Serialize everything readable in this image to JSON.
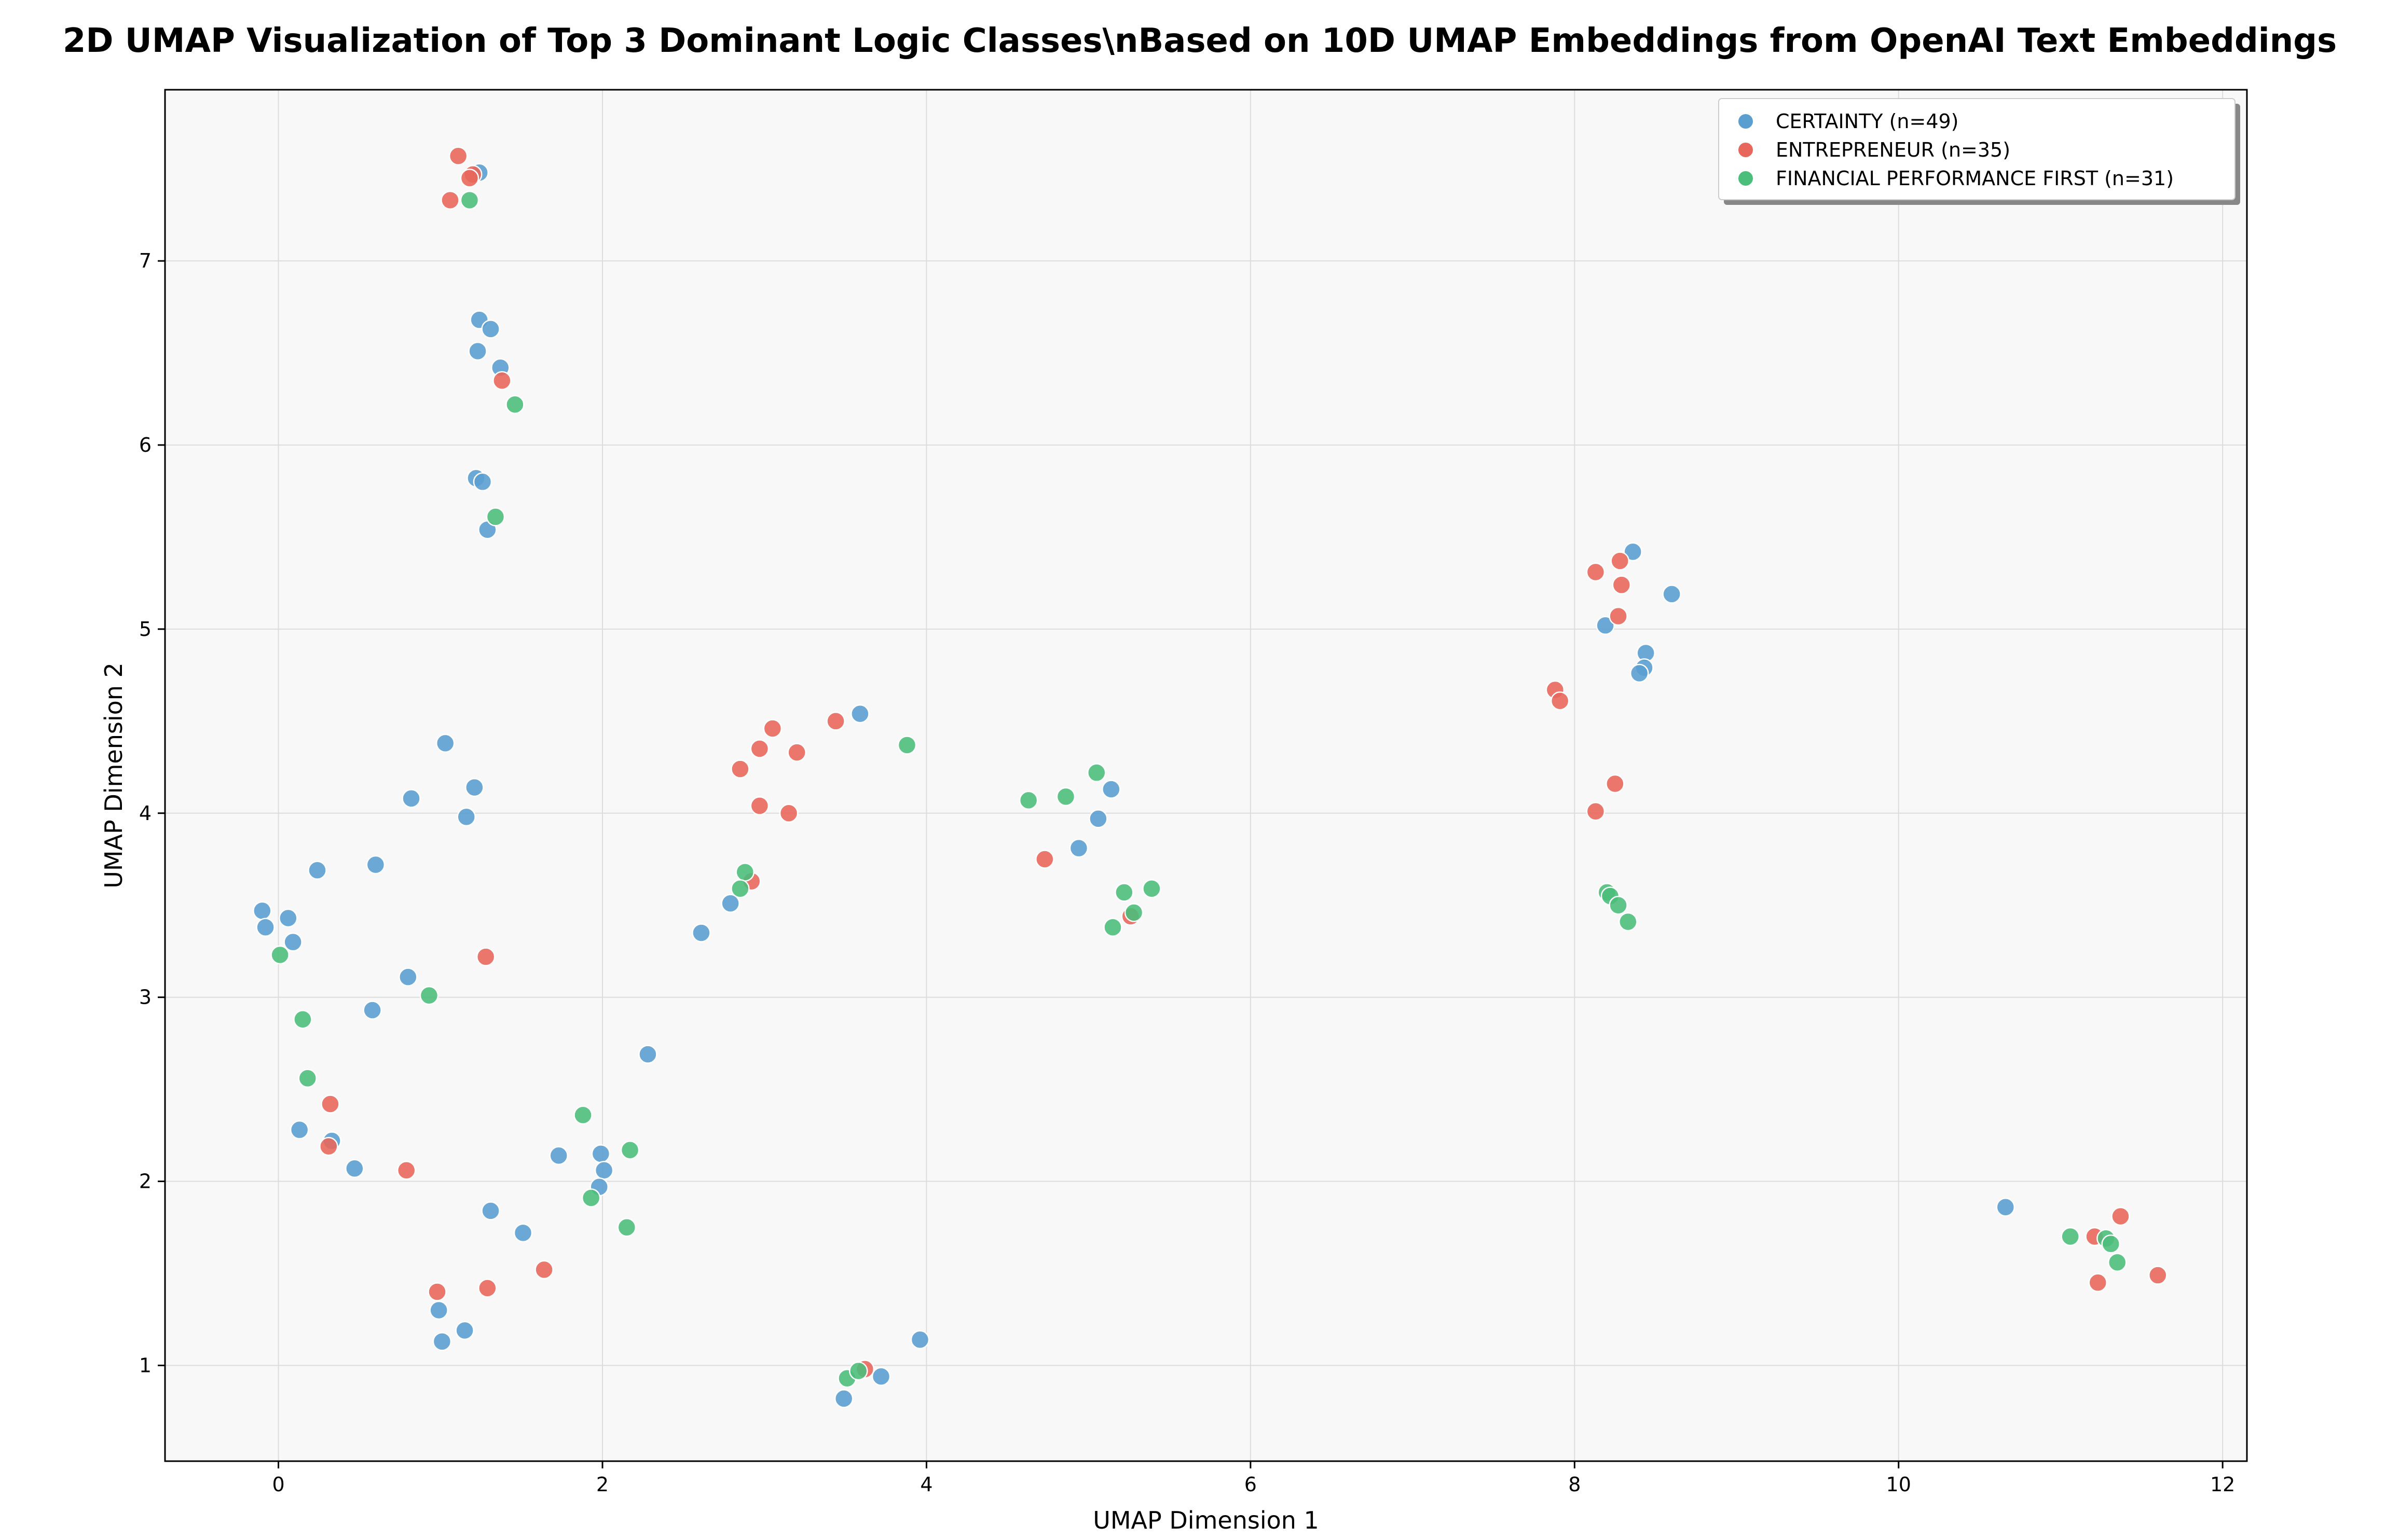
{
  "chart_data": {
    "type": "scatter",
    "title": "2D UMAP Visualization of Top 3 Dominant Logic Classes\\nBased on 10D UMAP Embeddings from OpenAI Text Embeddings",
    "xlabel": "UMAP Dimension 1",
    "ylabel": "UMAP Dimension 2",
    "xlim": [
      -0.7,
      12.15
    ],
    "ylim": [
      0.48,
      7.93
    ],
    "xticks": [
      0,
      2,
      4,
      6,
      8,
      10,
      12
    ],
    "yticks": [
      1,
      2,
      3,
      4,
      5,
      6,
      7
    ],
    "grid": true,
    "legend_position": "top-right",
    "plot_background": "#f8f8f8",
    "series": [
      {
        "name": "CERTAINTY (n=49)",
        "color": "#5b9fd0",
        "points": [
          [
            1.24,
            7.48
          ],
          [
            1.24,
            6.68
          ],
          [
            1.31,
            6.63
          ],
          [
            1.23,
            6.51
          ],
          [
            1.37,
            6.42
          ],
          [
            1.22,
            5.82
          ],
          [
            1.26,
            5.8
          ],
          [
            1.29,
            5.54
          ],
          [
            -0.1,
            3.47
          ],
          [
            -0.08,
            3.38
          ],
          [
            0.06,
            3.43
          ],
          [
            0.09,
            3.3
          ],
          [
            0.24,
            3.69
          ],
          [
            0.6,
            3.72
          ],
          [
            0.82,
            4.08
          ],
          [
            1.03,
            4.38
          ],
          [
            1.21,
            4.14
          ],
          [
            1.16,
            3.98
          ],
          [
            0.8,
            3.11
          ],
          [
            0.58,
            2.93
          ],
          [
            0.13,
            2.28
          ],
          [
            0.33,
            2.22
          ],
          [
            0.47,
            2.07
          ],
          [
            1.73,
            2.14
          ],
          [
            1.99,
            2.15
          ],
          [
            2.01,
            2.06
          ],
          [
            1.98,
            1.97
          ],
          [
            2.28,
            2.69
          ],
          [
            1.31,
            1.84
          ],
          [
            1.51,
            1.72
          ],
          [
            0.99,
            1.3
          ],
          [
            1.15,
            1.19
          ],
          [
            1.01,
            1.13
          ],
          [
            2.61,
            3.35
          ],
          [
            2.79,
            3.51
          ],
          [
            3.59,
            4.54
          ],
          [
            3.49,
            0.82
          ],
          [
            3.72,
            0.94
          ],
          [
            3.96,
            1.14
          ],
          [
            4.94,
            3.81
          ],
          [
            5.06,
            3.97
          ],
          [
            5.14,
            4.13
          ],
          [
            8.36,
            5.42
          ],
          [
            8.6,
            5.19
          ],
          [
            8.19,
            5.02
          ],
          [
            8.44,
            4.87
          ],
          [
            8.43,
            4.79
          ],
          [
            8.4,
            4.76
          ],
          [
            10.66,
            1.86
          ]
        ]
      },
      {
        "name": "ENTREPRENEUR (n=35)",
        "color": "#e8675c",
        "points": [
          [
            1.11,
            7.57
          ],
          [
            1.2,
            7.47
          ],
          [
            1.18,
            7.45
          ],
          [
            1.06,
            7.33
          ],
          [
            1.38,
            6.35
          ],
          [
            1.28,
            3.22
          ],
          [
            0.32,
            2.42
          ],
          [
            0.31,
            2.19
          ],
          [
            0.79,
            2.06
          ],
          [
            0.98,
            1.4
          ],
          [
            1.29,
            1.42
          ],
          [
            1.64,
            1.52
          ],
          [
            2.85,
            4.24
          ],
          [
            2.97,
            4.35
          ],
          [
            3.05,
            4.46
          ],
          [
            3.2,
            4.33
          ],
          [
            3.44,
            4.5
          ],
          [
            2.97,
            4.04
          ],
          [
            3.15,
            4.0
          ],
          [
            2.92,
            3.63
          ],
          [
            3.62,
            0.98
          ],
          [
            4.73,
            3.75
          ],
          [
            5.26,
            3.44
          ],
          [
            8.13,
            5.31
          ],
          [
            8.28,
            5.37
          ],
          [
            8.29,
            5.24
          ],
          [
            8.27,
            5.07
          ],
          [
            7.88,
            4.67
          ],
          [
            7.91,
            4.61
          ],
          [
            8.13,
            4.01
          ],
          [
            8.25,
            4.16
          ],
          [
            11.37,
            1.81
          ],
          [
            11.21,
            1.7
          ],
          [
            11.23,
            1.45
          ],
          [
            11.6,
            1.49
          ]
        ]
      },
      {
        "name": "FINANCIAL PERFORMANCE FIRST (n=31)",
        "color": "#4cbe7b",
        "points": [
          [
            1.18,
            7.33
          ],
          [
            1.46,
            6.22
          ],
          [
            1.34,
            5.61
          ],
          [
            0.01,
            3.23
          ],
          [
            0.15,
            2.88
          ],
          [
            0.18,
            2.56
          ],
          [
            0.93,
            3.01
          ],
          [
            1.88,
            2.36
          ],
          [
            2.17,
            2.17
          ],
          [
            1.93,
            1.91
          ],
          [
            2.15,
            1.75
          ],
          [
            2.88,
            3.68
          ],
          [
            2.85,
            3.59
          ],
          [
            3.88,
            4.37
          ],
          [
            3.51,
            0.93
          ],
          [
            3.58,
            0.97
          ],
          [
            4.63,
            4.07
          ],
          [
            4.86,
            4.09
          ],
          [
            5.05,
            4.22
          ],
          [
            5.22,
            3.57
          ],
          [
            5.39,
            3.59
          ],
          [
            5.28,
            3.46
          ],
          [
            5.15,
            3.38
          ],
          [
            8.2,
            3.57
          ],
          [
            8.22,
            3.55
          ],
          [
            8.27,
            3.5
          ],
          [
            8.33,
            3.41
          ],
          [
            11.06,
            1.7
          ],
          [
            11.28,
            1.69
          ],
          [
            11.31,
            1.66
          ],
          [
            11.35,
            1.56
          ]
        ]
      }
    ]
  }
}
